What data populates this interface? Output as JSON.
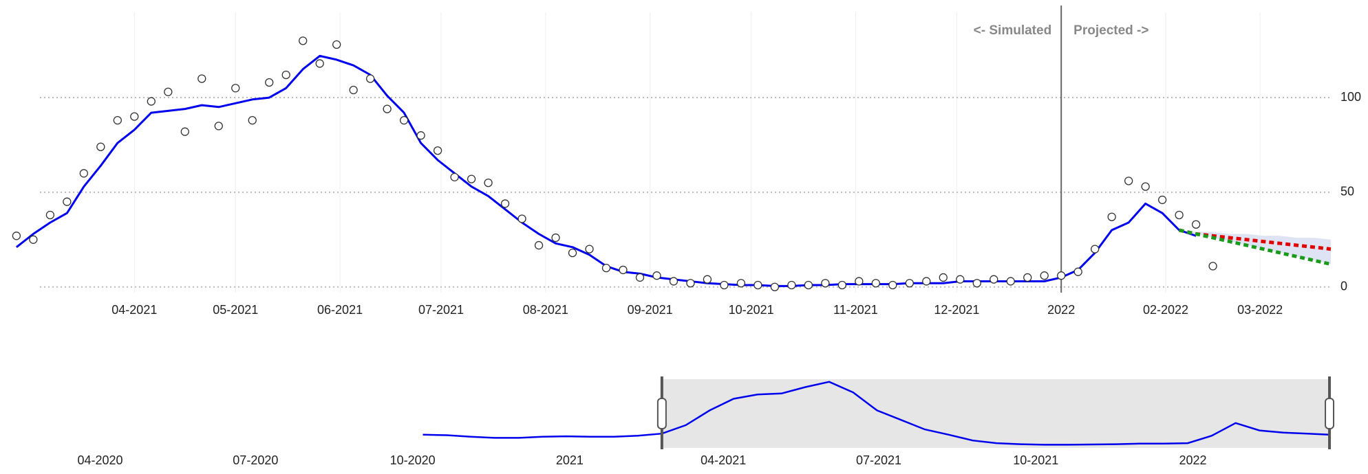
{
  "chart_data": [
    {
      "type": "line-scatter",
      "annotations": [
        "<- Simulated",
        "Projected ->"
      ],
      "divider": "2022-01-01",
      "xlim": [
        "2021-02-24",
        "2022-03-22"
      ],
      "ylim": [
        -3,
        145
      ],
      "yticks": [
        0,
        50,
        100
      ],
      "grid": true,
      "xticks": [
        {
          "value": "2021-04-01",
          "label": "04-2021"
        },
        {
          "value": "2021-05-01",
          "label": "05-2021"
        },
        {
          "value": "2021-06-01",
          "label": "06-2021"
        },
        {
          "value": "2021-07-01",
          "label": "07-2021"
        },
        {
          "value": "2021-08-01",
          "label": "08-2021"
        },
        {
          "value": "2021-09-01",
          "label": "09-2021"
        },
        {
          "value": "2021-10-01",
          "label": "10-2021"
        },
        {
          "value": "2021-11-01",
          "label": "11-2021"
        },
        {
          "value": "2021-12-01",
          "label": "12-2021"
        },
        {
          "value": "2022-01-01",
          "label": "2022"
        },
        {
          "value": "2022-02-01",
          "label": "02-2022"
        },
        {
          "value": "2022-03-01",
          "label": "03-2022"
        }
      ],
      "x": [
        "2021-02-25",
        "2021-03-02",
        "2021-03-07",
        "2021-03-12",
        "2021-03-17",
        "2021-03-22",
        "2021-03-27",
        "2021-04-01",
        "2021-04-06",
        "2021-04-11",
        "2021-04-16",
        "2021-04-21",
        "2021-04-26",
        "2021-05-01",
        "2021-05-06",
        "2021-05-11",
        "2021-05-16",
        "2021-05-21",
        "2021-05-26",
        "2021-05-31",
        "2021-06-05",
        "2021-06-10",
        "2021-06-15",
        "2021-06-20",
        "2021-06-25",
        "2021-06-30",
        "2021-07-05",
        "2021-07-10",
        "2021-07-15",
        "2021-07-20",
        "2021-07-25",
        "2021-07-30",
        "2021-08-04",
        "2021-08-09",
        "2021-08-14",
        "2021-08-19",
        "2021-08-24",
        "2021-08-29",
        "2021-09-03",
        "2021-09-08",
        "2021-09-13",
        "2021-09-18",
        "2021-09-23",
        "2021-09-28",
        "2021-10-03",
        "2021-10-08",
        "2021-10-13",
        "2021-10-18",
        "2021-10-23",
        "2021-10-28",
        "2021-11-02",
        "2021-11-07",
        "2021-11-12",
        "2021-11-17",
        "2021-11-22",
        "2021-11-27",
        "2021-12-02",
        "2021-12-07",
        "2021-12-12",
        "2021-12-17",
        "2021-12-22",
        "2021-12-27",
        "2022-01-01",
        "2022-01-06",
        "2022-01-11",
        "2022-01-16",
        "2022-01-21",
        "2022-01-26",
        "2022-01-31",
        "2022-02-05",
        "2022-02-10",
        "2022-02-15",
        "2022-02-20",
        "2022-02-25",
        "2022-03-02",
        "2022-03-07",
        "2022-03-12",
        "2022-03-17",
        "2022-03-22"
      ],
      "series": [
        {
          "kind": "line",
          "color": "#0000ee",
          "values": [
            21,
            28,
            34,
            39,
            53,
            64,
            76,
            83,
            92,
            93,
            94,
            96,
            95,
            97,
            99,
            100,
            105,
            115,
            122,
            120,
            117,
            112,
            101,
            92,
            76,
            67,
            60,
            53,
            48,
            41,
            34,
            28,
            23,
            21,
            17,
            11,
            8,
            7,
            5,
            4,
            3,
            2,
            1.5,
            1,
            1,
            0.5,
            0.5,
            1,
            1,
            1.5,
            1.5,
            1.5,
            1.5,
            2,
            2,
            2,
            3,
            3,
            3,
            3,
            3,
            3,
            5,
            9,
            18,
            30,
            34,
            44,
            39,
            30,
            27,
            null,
            null,
            null,
            null,
            null,
            null,
            null,
            null
          ]
        },
        {
          "kind": "scatter",
          "color": "#333333",
          "values": [
            27,
            25,
            38,
            45,
            60,
            74,
            88,
            90,
            98,
            103,
            82,
            110,
            85,
            105,
            88,
            108,
            112,
            130,
            118,
            128,
            104,
            110,
            94,
            88,
            80,
            72,
            58,
            57,
            55,
            44,
            36,
            22,
            26,
            18,
            20,
            10,
            9,
            5,
            6,
            3,
            2,
            4,
            1,
            2,
            1,
            0,
            1,
            1,
            2,
            1,
            3,
            2,
            1,
            2,
            3,
            5,
            4,
            2,
            4,
            3,
            5,
            6,
            6,
            8,
            20,
            37,
            56,
            53,
            46,
            38,
            33,
            11,
            null,
            null,
            null,
            null,
            null,
            null,
            null
          ]
        }
      ],
      "projection": {
        "x": [
          "2022-02-05",
          "2022-02-10",
          "2022-02-15",
          "2022-02-20",
          "2022-02-25",
          "2022-03-02",
          "2022-03-07",
          "2022-03-12",
          "2022-03-17",
          "2022-03-22"
        ],
        "band_color": "#dfe4f4",
        "band_upper": [
          30,
          29,
          29,
          28,
          28,
          27,
          27,
          26,
          26,
          25
        ],
        "band_lower": [
          30,
          28,
          26,
          24,
          22,
          20,
          18,
          16,
          14,
          12
        ],
        "series": [
          {
            "color": "#e00000",
            "values": [
              30,
              28,
              27,
              26,
              25,
              24,
              23,
              22,
              21,
              20
            ]
          },
          {
            "color": "#1a9a1a",
            "values": [
              30,
              28,
              26,
              24,
              22,
              20,
              18,
              16,
              14,
              12
            ]
          }
        ]
      }
    },
    {
      "type": "navigator",
      "xlim": [
        "2020-02-10",
        "2022-03-24"
      ],
      "ylim": [
        -5,
        125
      ],
      "selection": [
        "2021-02-24",
        "2022-03-22"
      ],
      "color": "#0000ee",
      "xticks": [
        {
          "value": "2020-04-01",
          "label": "04-2020"
        },
        {
          "value": "2020-07-01",
          "label": "07-2020"
        },
        {
          "value": "2020-10-01",
          "label": "10-2020"
        },
        {
          "value": "2021-01-01",
          "label": "2021"
        },
        {
          "value": "2021-04-01",
          "label": "04-2021"
        },
        {
          "value": "2021-07-01",
          "label": "07-2021"
        },
        {
          "value": "2021-10-01",
          "label": "10-2021"
        },
        {
          "value": "2022-01-01",
          "label": "2022"
        }
      ],
      "x": [
        "2020-10-07",
        "2020-10-21",
        "2020-11-04",
        "2020-11-18",
        "2020-12-02",
        "2020-12-16",
        "2020-12-30",
        "2021-01-13",
        "2021-01-27",
        "2021-02-10",
        "2021-02-24",
        "2021-03-10",
        "2021-03-24",
        "2021-04-07",
        "2021-04-21",
        "2021-05-05",
        "2021-05-19",
        "2021-06-02",
        "2021-06-16",
        "2021-06-30",
        "2021-07-14",
        "2021-07-28",
        "2021-08-11",
        "2021-08-25",
        "2021-09-08",
        "2021-09-22",
        "2021-10-06",
        "2021-10-20",
        "2021-11-03",
        "2021-11-17",
        "2021-12-01",
        "2021-12-15",
        "2021-12-29",
        "2022-01-12",
        "2022-01-26",
        "2022-02-09",
        "2022-02-23",
        "2022-03-09",
        "2022-03-22"
      ],
      "values": [
        20,
        19,
        16,
        14,
        14,
        16,
        17,
        16,
        16,
        18,
        22,
        38,
        66,
        88,
        96,
        98,
        110,
        120,
        100,
        66,
        48,
        30,
        20,
        9,
        4,
        2,
        1,
        1,
        1.5,
        2,
        3,
        3,
        4,
        18,
        42,
        28,
        24,
        22,
        20
      ]
    }
  ]
}
